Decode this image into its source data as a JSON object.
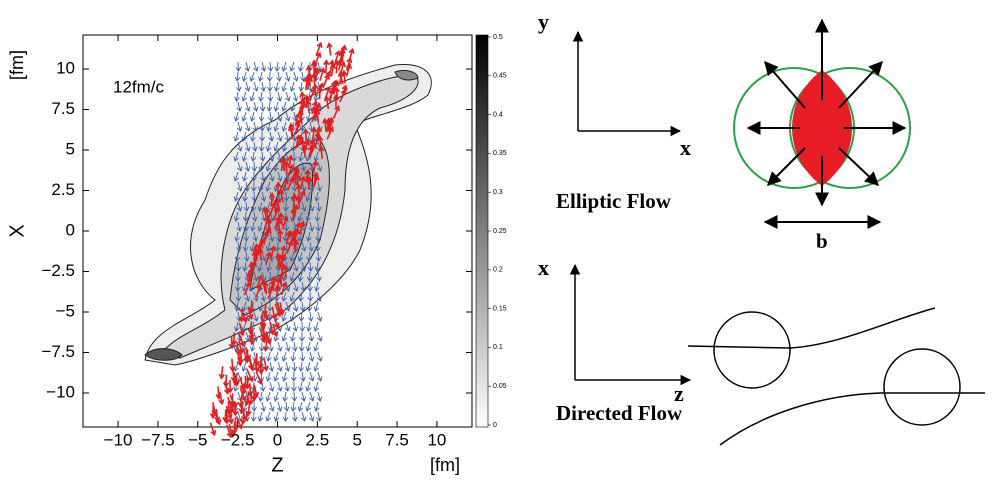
{
  "chart_data": {
    "type": "contour",
    "annotation": "12fm/c",
    "x_label": "Z",
    "x_unit": "[fm]",
    "y_label": "X",
    "y_unit": "[fm]",
    "xlim": [
      -12.2,
      12.2
    ],
    "xticks": [
      {
        "value": -10,
        "label": "−10"
      },
      {
        "value": -7.5,
        "label": "−7.5"
      },
      {
        "value": -5,
        "label": "−5"
      },
      {
        "value": -2.5,
        "label": "−2.5"
      },
      0,
      2.5,
      5,
      7.5,
      10
    ],
    "ylim": [
      -12.1,
      12.1
    ],
    "yticks": [
      {
        "value": -10,
        "label": "−10"
      },
      {
        "value": -7.5,
        "label": "−7.5"
      },
      {
        "value": -5,
        "label": "−5"
      },
      {
        "value": -2.5,
        "label": "−2.5"
      },
      0,
      2.5,
      5,
      7.5,
      10
    ],
    "colorbar_lim": [
      0,
      0.5
    ],
    "colorbar_ticks": [
      0,
      0.05,
      0.1,
      0.15,
      0.2,
      0.25,
      0.3,
      0.35,
      0.4,
      0.45,
      0.5
    ]
  },
  "diagrams": {
    "elliptic": {
      "y_axis": "y",
      "x_axis": "x",
      "title": "Elliptic Flow",
      "impact_label": "b"
    },
    "directed": {
      "x_axis": "x",
      "z_axis": "z",
      "title": "Directed Flow"
    }
  }
}
